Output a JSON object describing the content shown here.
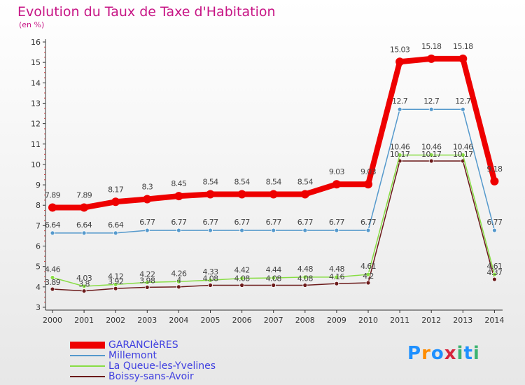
{
  "header": {
    "title": "Evolution du Taux de Taxe d'Habitation",
    "unit": "(en %)"
  },
  "logo": {
    "text": "Proxiti",
    "colors": [
      "#1e90ff",
      "#ff8c00",
      "#1e90ff",
      "#d7263d",
      "#3cb371",
      "#1e90ff",
      "#3cb371"
    ]
  },
  "chart_data": {
    "type": "line",
    "title": "Evolution du Taux de Taxe d'Habitation",
    "ylabel": "(en %)",
    "xlabel": "",
    "ylim": [
      3,
      16
    ],
    "yticks": [
      3,
      4,
      5,
      6,
      7,
      8,
      9,
      10,
      11,
      12,
      13,
      14,
      15,
      16
    ],
    "x": [
      "2000",
      "2001",
      "2002",
      "2003",
      "2004",
      "2005",
      "2006",
      "2007",
      "2008",
      "2009",
      "2010",
      "2011",
      "2012",
      "2013",
      "2014"
    ],
    "grid": false,
    "legend_position": "bottom-left",
    "series": [
      {
        "name": "GARANCIèRES",
        "color": "#ee0000",
        "values": [
          7.89,
          7.89,
          8.17,
          8.3,
          8.45,
          8.54,
          8.54,
          8.54,
          8.54,
          9.03,
          9.03,
          15.03,
          15.18,
          15.18,
          9.18
        ],
        "labels": [
          "7.89",
          "7.89",
          "8.17",
          "8.3",
          "8.45",
          "8.54",
          "8.54",
          "8.54",
          "8.54",
          "9.03",
          "9.03",
          "15.03",
          "15.18",
          "15.18",
          "9.18"
        ]
      },
      {
        "name": "Millemont",
        "color": "#5599cc",
        "values": [
          6.64,
          6.64,
          6.64,
          6.77,
          6.77,
          6.77,
          6.77,
          6.77,
          6.77,
          6.77,
          6.77,
          12.7,
          12.7,
          12.7,
          6.77
        ],
        "labels": [
          "6.64",
          "6.64",
          "6.64",
          "6.77",
          "6.77",
          "6.77",
          "6.77",
          "6.77",
          "6.77",
          "6.77",
          "6.77",
          "12.7",
          "12.7",
          "12.7",
          "6.77"
        ]
      },
      {
        "name": "La Queue-les-Yvelines",
        "color": "#88dd44",
        "values": [
          4.46,
          4.03,
          4.12,
          4.22,
          4.26,
          4.33,
          4.42,
          4.44,
          4.48,
          4.48,
          4.61,
          10.46,
          10.46,
          10.46,
          4.61
        ],
        "labels": [
          "4.46",
          "4.03",
          "4.12",
          "4.22",
          "4.26",
          "4.33",
          "4.42",
          "4.44",
          "4.48",
          "4.48",
          "4.61",
          "10.46",
          "10.46",
          "10.46",
          "4.61"
        ]
      },
      {
        "name": "Boissy-sans-Avoir",
        "color": "#6b1a1a",
        "values": [
          3.89,
          3.8,
          3.92,
          3.98,
          4.0,
          4.08,
          4.08,
          4.08,
          4.08,
          4.16,
          4.2,
          10.17,
          10.17,
          10.17,
          4.37
        ],
        "labels": [
          "3.89",
          "3.8",
          "3.92",
          "3.98",
          "4",
          "4.08",
          "4.08",
          "4.08",
          "4.08",
          "4.16",
          "4.2",
          "10.17",
          "10.17",
          "10.17",
          "4.37"
        ]
      }
    ]
  }
}
